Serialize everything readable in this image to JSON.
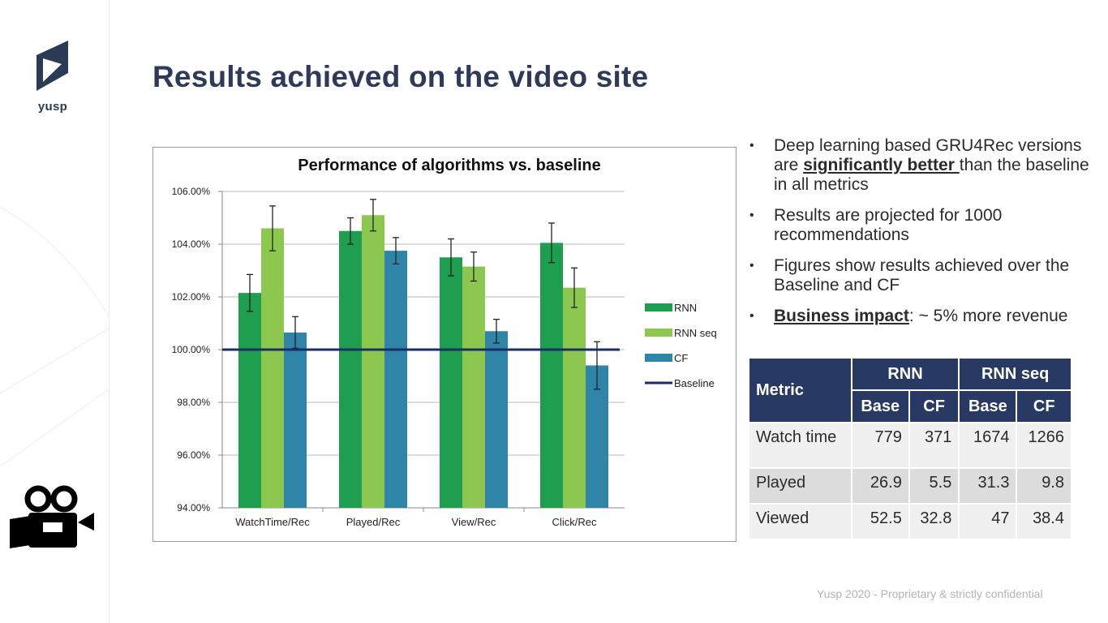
{
  "logo": {
    "text": "yusp"
  },
  "title": "Results achieved on the video site",
  "chart_data": {
    "type": "bar",
    "title": "Performance of algorithms vs. baseline",
    "categories": [
      "WatchTime/Rec",
      "Played/Rec",
      "View/Rec",
      "Click/Rec"
    ],
    "series": [
      {
        "name": "RNN",
        "color": "#1e9e4e",
        "values": [
          102.15,
          104.5,
          103.5,
          104.05
        ],
        "error": [
          0.7,
          0.5,
          0.7,
          0.75
        ]
      },
      {
        "name": "RNN seq",
        "color": "#8cc850",
        "values": [
          104.6,
          105.1,
          103.15,
          102.35
        ],
        "error": [
          0.85,
          0.6,
          0.55,
          0.75
        ]
      },
      {
        "name": "CF",
        "color": "#2f85a8",
        "values": [
          100.65,
          103.75,
          100.7,
          99.4
        ],
        "error": [
          0.6,
          0.5,
          0.45,
          0.9
        ]
      }
    ],
    "baseline": {
      "name": "Baseline",
      "value": 100.0,
      "color": "#1b2f66"
    },
    "ylim": [
      94.0,
      106.0
    ],
    "yticks": [
      "94.00%",
      "96.00%",
      "98.00%",
      "100.00%",
      "102.00%",
      "104.00%",
      "106.00%"
    ],
    "ytick_values": [
      94,
      96,
      98,
      100,
      102,
      104,
      106
    ],
    "grid": true,
    "legend": "right"
  },
  "bullets": [
    {
      "pre": "Deep learning based GRU4Rec versions are ",
      "emph": "significantly better ",
      "post": "than the baseline in all metrics"
    },
    {
      "pre": "Results are projected for 1000 recommendations",
      "emph": "",
      "post": ""
    },
    {
      "pre": "Figures show results achieved over the Baseline and CF",
      "emph": "",
      "post": ""
    },
    {
      "pre": "",
      "emph": "Business impact",
      "post": ": ~ 5% more revenue"
    }
  ],
  "table": {
    "metric_header": "Metric",
    "group_headers": [
      "RNN",
      "RNN seq"
    ],
    "sub_headers": [
      "Base",
      "CF",
      "Base",
      "CF"
    ],
    "rows": [
      {
        "metric": "Watch time",
        "values": [
          "779",
          "371",
          "1674",
          "1266"
        ]
      },
      {
        "metric": "Played",
        "values": [
          "26.9",
          "5.5",
          "31.3",
          "9.8"
        ]
      },
      {
        "metric": "Viewed",
        "values": [
          "52.5",
          "32.8",
          "47",
          "38.4"
        ]
      }
    ]
  },
  "footer": "Yusp 2020 - Proprietary & strictly confidential",
  "icons": {
    "logo": "yusp-play-logo-icon",
    "camera": "video-camera-icon"
  }
}
